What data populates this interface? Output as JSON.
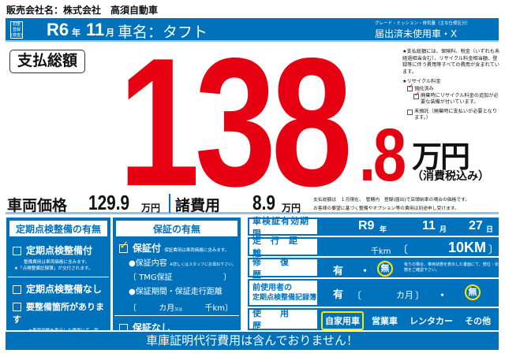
{
  "dealer": "販売会社名：株式会社　高須自動車",
  "header": {
    "first_reg_badge": "初度登録(検査)",
    "era_year": "R6",
    "year_label": "年",
    "month": "11",
    "month_label": "月",
    "car_name": "車名：タフト",
    "grade_caption": "グレード・ミッション・排気量（主な仕様区分）",
    "grade": "届出済未使用車・X"
  },
  "total": {
    "tag": "支払総額",
    "integer": "138",
    "decimal": ".8",
    "unit": "万円",
    "tax_note": "（消費税込み）",
    "color": "#e60012"
  },
  "notes": {
    "total_note": "★支払総額には、保険料、税金（いずれも未経過相当含む）、リサイクル料金相当額、登録等に伴う費用等すべての費用が含まれています。",
    "recycle_title": "★リサイクル料金",
    "deposited": "預託済み",
    "deposited_checked": true,
    "extra": "廃棄時にリサイクル料金の追加が必要な装備が付いています。",
    "extra_checked": true,
    "not_deposited": "未預託（廃棄時に支払いが必要となります。）",
    "not_deposited_checked": false
  },
  "prices": {
    "vehicle_label": "車両価格",
    "vehicle_value": "129.9",
    "unit": "万円",
    "fees_label": "諸費用",
    "fees_value": "8.9",
    "note1": "支払総額は　１月現在、　管轄内　登録(届出)で店頭納車の場合の価格です。",
    "note2": "お客様の要望に基づく整備やオプション等の費用は別途申し受けます。"
  },
  "inspection": {
    "title": "定期点検整備の有無",
    "with": "定期点検整備付",
    "with_note1": "整備費用は車両価格に含みます。",
    "with_note2": "★「点検整備記録簿」が交付されます。",
    "without": "定期点検整備なし",
    "needs": "要整備箇所があります",
    "needs_note": "★車両状態を表示した書面にて、部位・状態をご確認下さい。"
  },
  "warranty": {
    "title": "保証の有無",
    "with": "保証付",
    "with_checked": true,
    "with_note": "保証費用は車両価格に含みます。",
    "content_label": "●保証内容",
    "content_note": "※詳しくはスタッフにお尋ね下さい。",
    "content": "TMG保証",
    "period_label": "●保証期間・保証走行距離",
    "months_unit": "カ月",
    "or": "又は",
    "km_unit": "千km",
    "none": "保証なし"
  },
  "details": {
    "inspect_label": "車検証有効期限",
    "inspect_year": "R9",
    "year_unit": "年",
    "inspect_month": "11",
    "month_unit": "月",
    "inspect_day": "27",
    "day_unit": "日",
    "mileage_label": "走行距離",
    "mileage_unit": "千km",
    "mileage": "10KM",
    "repair_label": "修復歴",
    "yes": "有",
    "dot": "・",
    "no": "無",
    "repair_note": "有りの場合、車両状態を表示した書面にて、部位・状態をご確認下さい。",
    "record_label1": "前使用者の",
    "record_label2": "定期点検整備記録簿",
    "record_months": "カ月",
    "usage_label": "使用歴",
    "usage": [
      "自家用車",
      "営業車",
      "レンタカー",
      "その他"
    ]
  },
  "footer": "車庫証明代行費用は含んでおりません！",
  "colors": {
    "blue": "#0072bc",
    "red": "#e60012",
    "highlight": "#ffe600"
  }
}
